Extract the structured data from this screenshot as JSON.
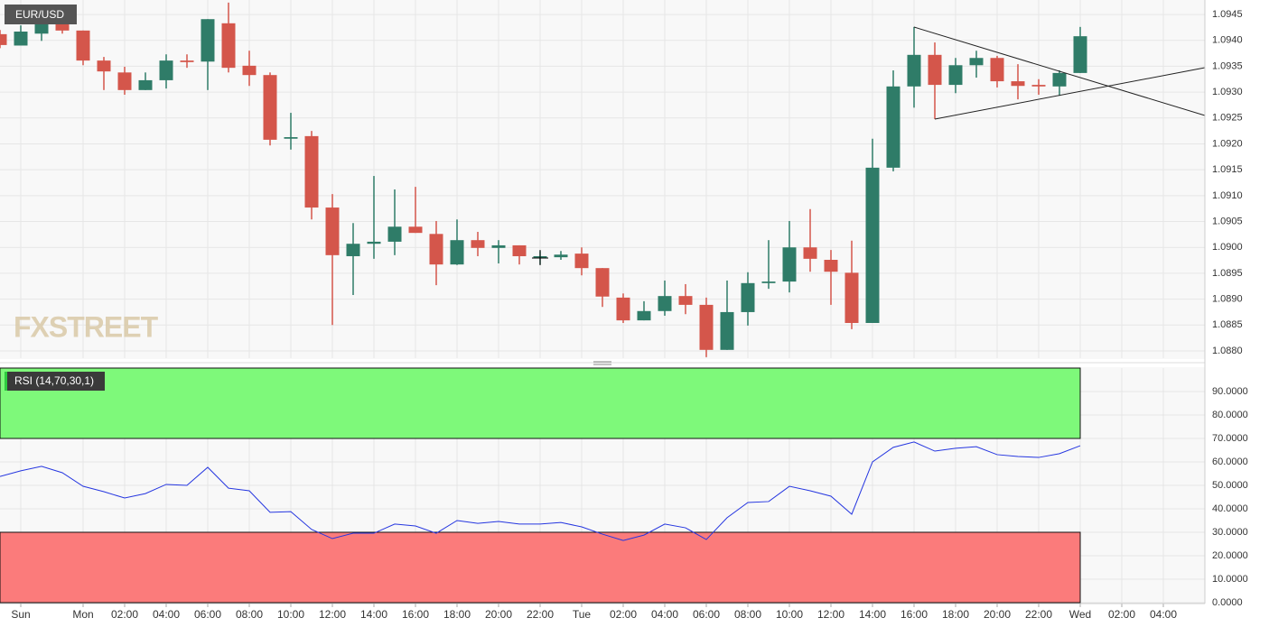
{
  "chart_data": [
    {
      "type": "candlestick",
      "title": "EUR/USD",
      "watermark": "FXSTREET",
      "up_color": "#2f7c68",
      "down_color": "#d4564b",
      "open": [
        1.09412,
        1.0939,
        1.09413,
        1.09443,
        1.09419,
        1.09361,
        1.09338,
        1.09304,
        1.09323,
        1.09361,
        1.09359,
        1.09433,
        1.09351,
        1.09333,
        1.0921,
        1.09215,
        1.09077,
        1.08983,
        1.09007,
        1.09011,
        1.0904,
        1.09026,
        1.08967,
        1.09014,
        1.08999,
        1.09004,
        1.08981,
        1.08981,
        1.08988,
        1.0896,
        1.08903,
        1.08859,
        1.08877,
        1.08906,
        1.08889,
        1.08802,
        1.08875,
        1.08931,
        1.08934,
        1.09,
        1.08976,
        1.08951,
        1.08854,
        1.09154,
        1.09311,
        1.09372,
        1.09314,
        1.09352,
        1.09366,
        1.09321,
        1.09314,
        1.09311,
        1.09337
      ],
      "high": [
        1.0942,
        1.09429,
        1.09452,
        1.09452,
        1.09419,
        1.09368,
        1.09349,
        1.09338,
        1.09373,
        1.09373,
        1.09441,
        1.09473,
        1.0938,
        1.09338,
        1.0926,
        1.09225,
        1.09103,
        1.09047,
        1.09138,
        1.09112,
        1.09117,
        1.09051,
        1.09054,
        1.0903,
        1.09014,
        1.09004,
        1.08993,
        1.08993,
        1.09,
        1.0896,
        1.08911,
        1.08896,
        1.08936,
        1.08929,
        1.08903,
        1.08936,
        1.08952,
        1.09014,
        1.09051,
        1.09074,
        1.08995,
        1.09013,
        1.0921,
        1.09342,
        1.09426,
        1.09396,
        1.09366,
        1.0938,
        1.0937,
        1.09354,
        1.09325,
        1.09342,
        1.09426
      ],
      "low": [
        1.09385,
        1.0939,
        1.09399,
        1.09413,
        1.09352,
        1.09304,
        1.09295,
        1.09304,
        1.09307,
        1.09347,
        1.09304,
        1.09338,
        1.09312,
        1.09197,
        1.09189,
        1.09054,
        1.0885,
        1.08908,
        1.08978,
        1.08985,
        1.09028,
        1.08927,
        1.08966,
        1.08983,
        1.08969,
        1.08967,
        1.08967,
        1.08976,
        1.08946,
        1.08885,
        1.08854,
        1.08859,
        1.08868,
        1.08871,
        1.08788,
        1.08802,
        1.08849,
        1.0892,
        1.08913,
        1.08953,
        1.08889,
        1.08842,
        1.08854,
        1.09147,
        1.0927,
        1.09248,
        1.09298,
        1.09328,
        1.09309,
        1.09286,
        1.09295,
        1.09293,
        1.09337
      ],
      "close": [
        1.09391,
        1.09417,
        1.09438,
        1.09419,
        1.09361,
        1.0934,
        1.09304,
        1.09323,
        1.09361,
        1.09358,
        1.09441,
        1.09347,
        1.09333,
        1.09208,
        1.09213,
        1.09077,
        1.08985,
        1.09007,
        1.09011,
        1.0904,
        1.09028,
        1.08967,
        1.09014,
        1.08999,
        1.09004,
        1.08983,
        1.08983,
        1.08986,
        1.0896,
        1.08905,
        1.08859,
        1.08877,
        1.08906,
        1.08889,
        1.08802,
        1.08875,
        1.08931,
        1.08934,
        1.09,
        1.08978,
        1.08953,
        1.08854,
        1.09154,
        1.09311,
        1.09372,
        1.09314,
        1.09352,
        1.09366,
        1.09321,
        1.09312,
        1.09311,
        1.09337,
        1.09408
      ],
      "xlim": [
        0,
        58
      ],
      "ylim": [
        1.08786,
        1.09478
      ],
      "yticks": [
        {
          "value": 1.088,
          "label": "1.0880"
        },
        1.0885,
        {
          "value": 1.089,
          "label": "1.0890"
        },
        1.0895,
        {
          "value": 1.09,
          "label": "1.0900"
        },
        1.0905,
        {
          "value": 1.091,
          "label": "1.0910"
        },
        1.0915,
        {
          "value": 1.092,
          "label": "1.0920"
        },
        1.0925,
        {
          "value": 1.093,
          "label": "1.0930"
        },
        1.0935,
        {
          "value": 1.094,
          "label": "1.0940"
        },
        1.0945
      ],
      "grid": true
    },
    {
      "type": "line",
      "title": "RSI (14,70,30,1)",
      "color": "#2536e0",
      "values": [
        53.8,
        56.2,
        58.1,
        55.4,
        49.6,
        47.3,
        44.6,
        46.5,
        50.4,
        50,
        57.7,
        48.8,
        47.7,
        38.5,
        38.8,
        31.2,
        27.3,
        29.6,
        29.6,
        33.5,
        32.7,
        29.6,
        35,
        33.8,
        34.6,
        33.5,
        33.5,
        34.2,
        32.3,
        29.2,
        26.5,
        28.8,
        33.5,
        31.9,
        26.9,
        36.2,
        42.7,
        43.1,
        49.6,
        47.7,
        45.4,
        37.7,
        60,
        66.2,
        68.5,
        64.6,
        65.8,
        66.5,
        63.1,
        62.3,
        61.9,
        63.5,
        66.9
      ],
      "bands": [
        {
          "from": 70,
          "to": 100,
          "color": "#7ef97a"
        },
        {
          "from": 0,
          "to": 30,
          "color": "#fb7b7b"
        }
      ],
      "xlim": [
        0,
        58
      ],
      "ylim": [
        0,
        100
      ],
      "yticks": [
        {
          "value": 0,
          "label": "0.0000"
        },
        {
          "value": 10,
          "label": "10.0000"
        },
        {
          "value": 20,
          "label": "20.0000"
        },
        {
          "value": 30,
          "label": "30.0000"
        },
        {
          "value": 40,
          "label": "40.0000"
        },
        {
          "value": 50,
          "label": "50.0000"
        },
        {
          "value": 60,
          "label": "60.0000"
        },
        {
          "value": 70,
          "label": "70.0000"
        },
        {
          "value": 80,
          "label": "80.0000"
        },
        {
          "value": 90,
          "label": "90.0000"
        }
      ],
      "xticks": [
        {
          "value": 1,
          "label": "Sun"
        },
        {
          "value": 4,
          "label": "Mon"
        },
        {
          "value": 6,
          "label": "02:00"
        },
        {
          "value": 8,
          "label": "04:00"
        },
        {
          "value": 10,
          "label": "06:00"
        },
        {
          "value": 12,
          "label": "08:00"
        },
        {
          "value": 14,
          "label": "10:00"
        },
        {
          "value": 16,
          "label": "12:00"
        },
        {
          "value": 18,
          "label": "14:00"
        },
        {
          "value": 20,
          "label": "16:00"
        },
        {
          "value": 22,
          "label": "18:00"
        },
        {
          "value": 24,
          "label": "20:00"
        },
        {
          "value": 26,
          "label": "22:00"
        },
        {
          "value": 28,
          "label": "Tue"
        },
        {
          "value": 30,
          "label": "02:00"
        },
        {
          "value": 32,
          "label": "04:00"
        },
        {
          "value": 34,
          "label": "06:00"
        },
        {
          "value": 36,
          "label": "08:00"
        },
        {
          "value": 38,
          "label": "10:00"
        },
        {
          "value": 40,
          "label": "12:00"
        },
        {
          "value": 42,
          "label": "14:00"
        },
        {
          "value": 44,
          "label": "16:00"
        },
        {
          "value": 46,
          "label": "18:00"
        },
        {
          "value": 48,
          "label": "20:00"
        },
        {
          "value": 50,
          "label": "22:00"
        },
        {
          "value": 52,
          "label": "Wed"
        },
        {
          "value": 54,
          "label": "02:00"
        },
        {
          "value": 56,
          "label": "04:00"
        }
      ],
      "grid": true
    }
  ]
}
